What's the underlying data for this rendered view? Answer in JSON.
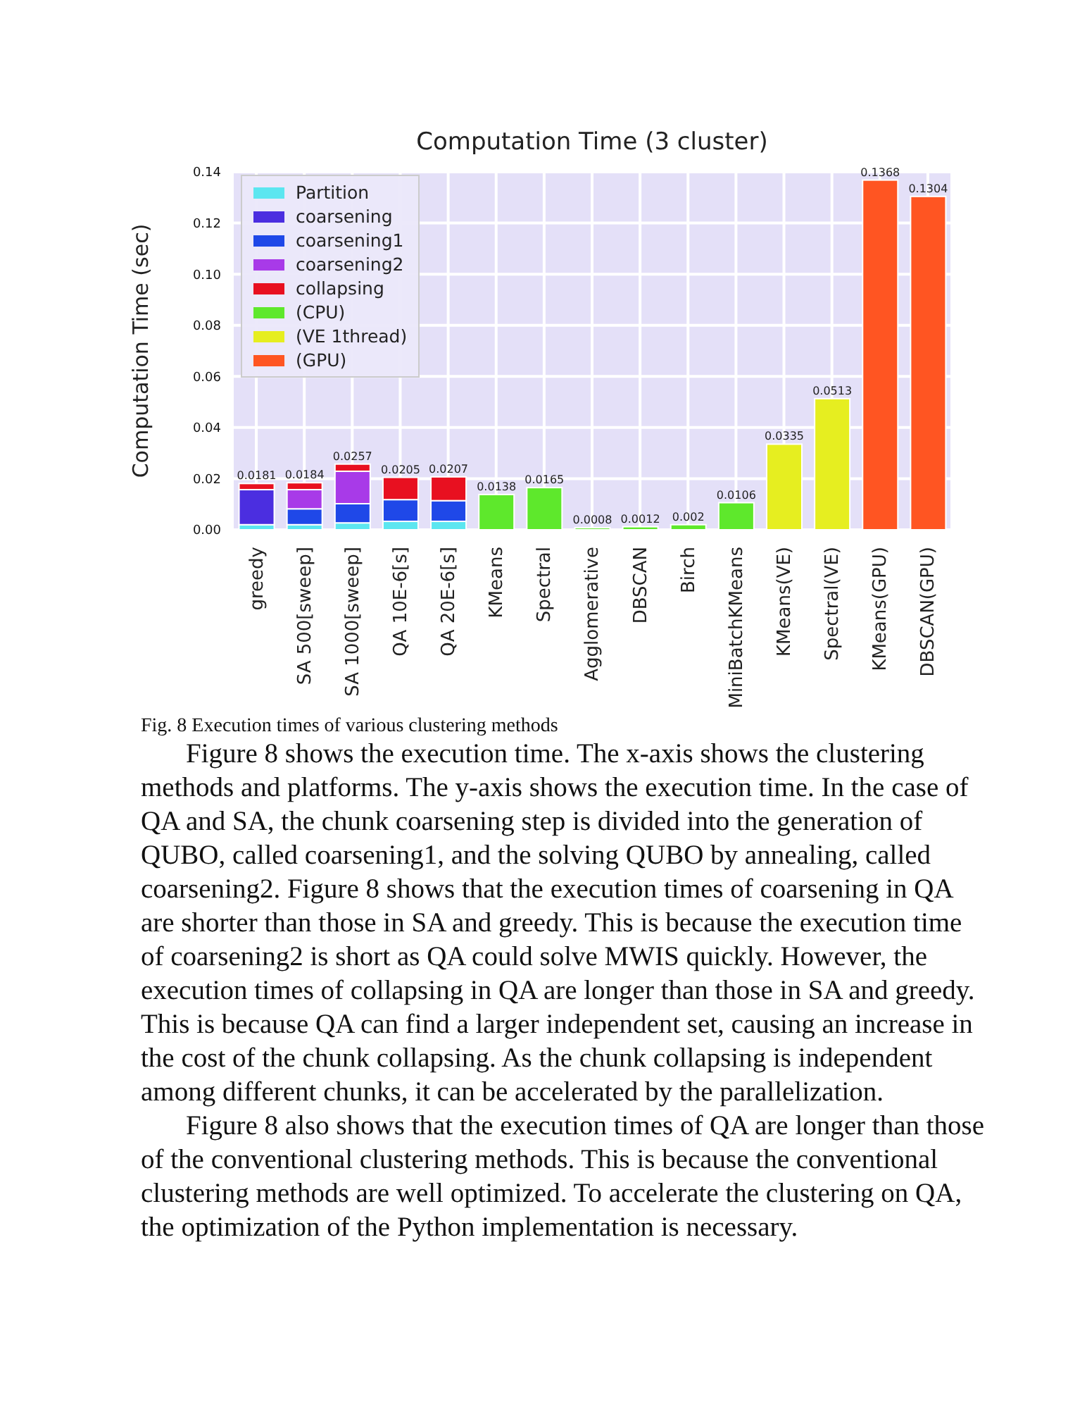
{
  "chart_data": {
    "type": "bar",
    "title": "Computation Time (3 cluster)",
    "ylabel": "Computation Time (sec)",
    "categories": [
      "greedy",
      "SA 500[sweep]",
      "SA 1000[sweep]",
      "QA 10E-6[s]",
      "QA 20E-6[s]",
      "KMeans",
      "Spectral",
      "Agglomerative",
      "DBSCAN",
      "Birch",
      "MiniBatchKMeans",
      "KMeans(VE)",
      "Spectral(VE)",
      "KMeans(GPU)",
      "DBSCAN(GPU)"
    ],
    "stacked": true,
    "series": [
      {
        "name": "Partition",
        "color": "#5ce6f0",
        "values": [
          0.002,
          0.002,
          0.0027,
          0.0033,
          0.0033,
          null,
          null,
          null,
          null,
          null,
          null,
          null,
          null,
          null,
          null
        ]
      },
      {
        "name": "coarsening",
        "color": "#4b2ee0",
        "values": [
          0.0137,
          null,
          null,
          null,
          null,
          null,
          null,
          null,
          null,
          null,
          null,
          null,
          null,
          null,
          null
        ]
      },
      {
        "name": "coarsening1",
        "color": "#1f48e8",
        "values": [
          null,
          0.0062,
          0.0075,
          0.0085,
          0.0081,
          null,
          null,
          null,
          null,
          null,
          null,
          null,
          null,
          null,
          null
        ]
      },
      {
        "name": "coarsening2",
        "color": "#a83ae8",
        "values": [
          null,
          0.0075,
          0.0127,
          null,
          null,
          null,
          null,
          null,
          null,
          null,
          null,
          null,
          null,
          null,
          null
        ]
      },
      {
        "name": "collapsing",
        "color": "#e81020",
        "values": [
          0.0024,
          0.0027,
          0.0028,
          0.0087,
          0.0093,
          null,
          null,
          null,
          null,
          null,
          null,
          null,
          null,
          null,
          null
        ]
      },
      {
        "name": "(CPU)",
        "color": "#5ee82c",
        "values": [
          null,
          null,
          null,
          null,
          null,
          0.0138,
          0.0165,
          0.0008,
          0.0012,
          0.002,
          0.0106,
          null,
          null,
          null,
          null
        ]
      },
      {
        "name": "(VE 1thread)",
        "color": "#e6ee20",
        "values": [
          null,
          null,
          null,
          null,
          null,
          null,
          null,
          null,
          null,
          null,
          null,
          0.0335,
          0.0513,
          null,
          null
        ]
      },
      {
        "name": "(GPU)",
        "color": "#ff5522",
        "values": [
          null,
          null,
          null,
          null,
          null,
          null,
          null,
          null,
          null,
          null,
          null,
          null,
          null,
          0.1368,
          0.1304
        ]
      }
    ],
    "totals": [
      "0.0181",
      "0.0184",
      "0.0257",
      "0.0205",
      "0.0207",
      "0.0138",
      "0.0165",
      "0.0008",
      "0.0012",
      "0.002",
      "0.0106",
      "0.0335",
      "0.0513",
      "0.1368",
      "0.1304"
    ],
    "ylim": [
      0,
      0.14
    ],
    "yticks": [
      {
        "value": 0,
        "label": "0.00"
      },
      {
        "value": 0.02,
        "label": "0.02"
      },
      {
        "value": 0.04,
        "label": "0.04"
      },
      {
        "value": 0.06,
        "label": "0.06"
      },
      {
        "value": 0.08,
        "label": "0.08"
      },
      {
        "value": 0.1,
        "label": "0.10"
      },
      {
        "value": 0.12,
        "label": "0.12"
      },
      {
        "value": 0.14,
        "label": "0.14"
      }
    ],
    "grid": true,
    "legend": "top left",
    "annotations": [
      "Fig. 8 Execution times of various clustering methods",
      "Figure 8 shows the execution time. The x-axis shows the clustering methods and platforms. The y-axis shows the execution time. In the case of QA and SA, the chunk coarsening step is divided into the generation of QUBO, called coarsening1, and the solving QUBO by annealing, called coarsening2. Figure 8 shows that the execution times of coarsening in QA are shorter than those in SA and greedy. This is because the execution time of coarsening2 is short as QA could solve MWIS quickly. However, the execution times of collapsing in QA are longer than those in SA and greedy. This is because QA can find a larger independent set, causing an increase in the cost of the chunk collapsing. As the chunk collapsing is independent among different chunks, it can be accelerated by the parallelization.",
      "Figure 8 also shows that the execution times of QA are longer than those of the conventional clustering methods. This is because the conventional clustering methods are well optimized. To accelerate the clustering on QA, the optimization of the Python implementation is necessary."
    ]
  }
}
